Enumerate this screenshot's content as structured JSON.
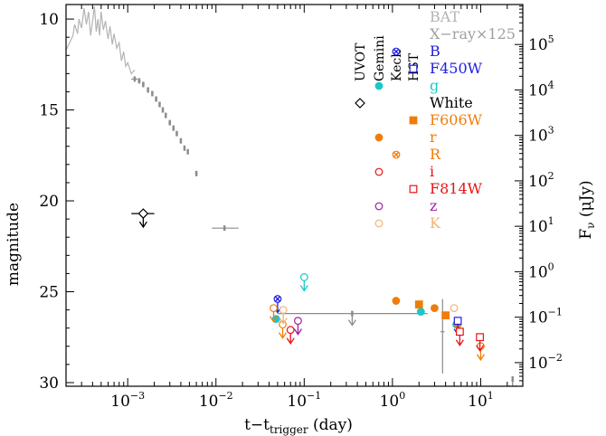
{
  "chart_data": {
    "type": "scatter",
    "title": "",
    "xlabel_main": "t−t",
    "xlabel_sub": "trigger",
    "xlabel_unit": " (day)",
    "ylabel_left": "magnitude",
    "ylabel_right_main": "F",
    "ylabel_right_sub": "ν",
    "ylabel_right_unit": " (μJy)",
    "x_scale": "log",
    "xlim": [
      0.0002,
      30
    ],
    "ylim": [
      30.2,
      9.2
    ],
    "x_ticks": [
      {
        "value": 0.001,
        "base": "10",
        "exp": "−3"
      },
      {
        "value": 0.01,
        "base": "10",
        "exp": "−2"
      },
      {
        "value": 0.1,
        "base": "10",
        "exp": "−1"
      },
      {
        "value": 1,
        "base": "10",
        "exp": "0"
      },
      {
        "value": 10,
        "base": "10",
        "exp": "1"
      }
    ],
    "y_ticks": [
      10,
      15,
      20,
      25,
      30
    ],
    "right_ticks": [
      {
        "value": 5,
        "exp": "5"
      },
      {
        "value": 4,
        "exp": "4"
      },
      {
        "value": 3,
        "exp": "3"
      },
      {
        "value": 2,
        "exp": "2"
      },
      {
        "value": 1,
        "exp": "1"
      },
      {
        "value": 0,
        "exp": "0"
      },
      {
        "value": -1,
        "exp": "−1"
      },
      {
        "value": -2,
        "exp": "−2"
      }
    ],
    "instrument_labels": [
      "UVOT",
      "Gemini",
      "Keck",
      "HST"
    ],
    "legend": [
      {
        "name": "BAT",
        "color": "#b4b4b4",
        "marker": "none"
      },
      {
        "name": "X−ray×125",
        "color": "#a0a0a0",
        "marker": "none"
      },
      {
        "name": "B",
        "color": "#2020e0",
        "marker": "xcircle",
        "col": 2
      },
      {
        "name": "F450W",
        "color": "#2020e0",
        "marker": "square-open",
        "col": 3
      },
      {
        "name": "g",
        "color": "#19c8c8",
        "marker": "circle-filled",
        "col": 1
      },
      {
        "name": "White",
        "color": "#000000",
        "marker": "diamond-open",
        "col": 0
      },
      {
        "name": "F606W",
        "color": "#f07d0a",
        "marker": "square-filled",
        "col": 3
      },
      {
        "name": "r",
        "color": "#f07d0a",
        "marker": "circle-filled",
        "col": 1
      },
      {
        "name": "R",
        "color": "#f07d0a",
        "marker": "xcircle",
        "col": 2
      },
      {
        "name": "i",
        "color": "#e61414",
        "marker": "circle-open",
        "col": 1
      },
      {
        "name": "F814W",
        "color": "#e61414",
        "marker": "square-open",
        "col": 3
      },
      {
        "name": "z",
        "color": "#a01ea0",
        "marker": "circle-open",
        "col": 1
      },
      {
        "name": "K",
        "color": "#f0b478",
        "marker": "circle-open",
        "col": 1
      }
    ],
    "bat_curve": [
      [
        0.0002,
        11.7
      ],
      [
        0.00022,
        11.3
      ],
      [
        0.00024,
        10.9
      ],
      [
        0.00025,
        10.3
      ],
      [
        0.00027,
        10.8
      ],
      [
        0.00028,
        10.0
      ],
      [
        0.0003,
        10.5
      ],
      [
        0.00032,
        9.4
      ],
      [
        0.00034,
        10.3
      ],
      [
        0.00036,
        9.6
      ],
      [
        0.00038,
        10.9
      ],
      [
        0.0004,
        10.1
      ],
      [
        0.00042,
        9.3
      ],
      [
        0.00044,
        10.7
      ],
      [
        0.00046,
        10.0
      ],
      [
        0.00048,
        10.9
      ],
      [
        0.0005,
        9.6
      ],
      [
        0.00053,
        10.6
      ],
      [
        0.00056,
        10.1
      ],
      [
        0.0006,
        11.1
      ],
      [
        0.00063,
        10.4
      ],
      [
        0.00067,
        11.4
      ],
      [
        0.0007,
        10.8
      ],
      [
        0.00075,
        11.6
      ],
      [
        0.0008,
        11.3
      ],
      [
        0.00085,
        12.3
      ],
      [
        0.0009,
        11.8
      ],
      [
        0.00095,
        12.6
      ],
      [
        0.001,
        12.4
      ],
      [
        0.0011,
        13.0
      ],
      [
        0.0012,
        12.8
      ]
    ],
    "xray": [
      {
        "x": 0.0012,
        "y": 13.3,
        "xerr": [
          0.0011,
          0.0013
        ]
      },
      {
        "x": 0.00135,
        "y": 13.4,
        "xerr": [
          0.0013,
          0.0014
        ]
      },
      {
        "x": 0.0015,
        "y": 13.6,
        "xerr": [
          0.00145,
          0.00155
        ]
      },
      {
        "x": 0.0017,
        "y": 13.9,
        "xerr": [
          0.00165,
          0.00175
        ]
      },
      {
        "x": 0.0019,
        "y": 14.1,
        "xerr": [
          0.00185,
          0.00195
        ]
      },
      {
        "x": 0.0021,
        "y": 14.4,
        "xerr": [
          0.00205,
          0.00215
        ]
      },
      {
        "x": 0.0023,
        "y": 14.7,
        "xerr": [
          0.00225,
          0.00235
        ]
      },
      {
        "x": 0.0025,
        "y": 15.0,
        "xerr": [
          0.00245,
          0.00255
        ]
      },
      {
        "x": 0.0027,
        "y": 15.3,
        "xerr": [
          0.00265,
          0.00275
        ]
      },
      {
        "x": 0.003,
        "y": 15.7,
        "xerr": [
          0.0029,
          0.0031
        ]
      },
      {
        "x": 0.0033,
        "y": 16.0,
        "xerr": [
          0.0032,
          0.0034
        ]
      },
      {
        "x": 0.0036,
        "y": 16.3,
        "xerr": [
          0.0035,
          0.0037
        ]
      },
      {
        "x": 0.004,
        "y": 16.7,
        "xerr": [
          0.0039,
          0.0041
        ]
      },
      {
        "x": 0.0044,
        "y": 17.1,
        "xerr": [
          0.0043,
          0.0045
        ]
      },
      {
        "x": 0.0048,
        "y": 17.3,
        "xerr": [
          0.0047,
          0.0049
        ]
      },
      {
        "x": 0.006,
        "y": 18.5,
        "xerr": [
          0.0058,
          0.0062
        ]
      },
      {
        "x": 0.0125,
        "y": 21.5,
        "xerr": [
          0.009,
          0.018
        ]
      },
      {
        "x": 0.35,
        "y": 26.2,
        "xerr": [
          0.05,
          2.5
        ],
        "upper": true
      },
      {
        "x": 3.7,
        "y": 27.2,
        "xerr": [
          3.5,
          3.9
        ],
        "yerr": [
          25.4,
          29.5
        ]
      },
      {
        "x": 23,
        "y": 29.8,
        "upper": true
      }
    ],
    "series": [
      {
        "name": "White",
        "color": "#000000",
        "marker": "diamond-open",
        "points": [
          {
            "x": 0.0015,
            "y": 20.7,
            "xerr": [
              0.0011,
              0.002
            ],
            "upper": true
          }
        ]
      },
      {
        "name": "B",
        "color": "#2020e0",
        "marker": "xcircle",
        "points": [
          {
            "x": 0.05,
            "y": 25.4,
            "upper": true
          }
        ]
      },
      {
        "name": "g",
        "color": "#19c8c8",
        "marker": "circle",
        "points": [
          {
            "x": 0.048,
            "y": 26.5
          },
          {
            "x": 0.1,
            "y": 24.2,
            "open": true,
            "upper": true
          },
          {
            "x": 2.1,
            "y": 26.1
          },
          {
            "x": 5.3,
            "y": 26.8
          }
        ]
      },
      {
        "name": "r",
        "color": "#f07d0a",
        "marker": "circle",
        "points": [
          {
            "x": 0.045,
            "y": 25.9,
            "open": true,
            "upper": true
          },
          {
            "x": 0.057,
            "y": 26.8,
            "open": true,
            "upper": true
          },
          {
            "x": 1.1,
            "y": 25.5
          },
          {
            "x": 3.0,
            "y": 25.9
          },
          {
            "x": 5.5,
            "y": 26.8
          },
          {
            "x": 10,
            "y": 28.0,
            "open": true,
            "upper": true
          }
        ]
      },
      {
        "name": "i",
        "color": "#e61414",
        "marker": "circle-open",
        "points": [
          {
            "x": 0.07,
            "y": 27.1,
            "upper": true
          }
        ]
      },
      {
        "name": "z",
        "color": "#a01ea0",
        "marker": "circle-open",
        "points": [
          {
            "x": 0.085,
            "y": 26.6,
            "upper": true
          }
        ]
      },
      {
        "name": "K",
        "color": "#f0b478",
        "marker": "circle-open",
        "points": [
          {
            "x": 0.058,
            "y": 26.0,
            "upper": true
          },
          {
            "x": 5.0,
            "y": 25.9
          }
        ]
      },
      {
        "name": "F450W",
        "color": "#2020e0",
        "marker": "square-open",
        "points": [
          {
            "x": 5.5,
            "y": 26.6,
            "upper": true
          }
        ]
      },
      {
        "name": "F606W",
        "color": "#f07d0a",
        "marker": "square-filled",
        "points": [
          {
            "x": 2.0,
            "y": 25.7
          },
          {
            "x": 4.0,
            "y": 26.3
          }
        ]
      },
      {
        "name": "F814W",
        "color": "#e61414",
        "marker": "square-open",
        "points": [
          {
            "x": 5.8,
            "y": 27.2,
            "upper": true
          },
          {
            "x": 9.8,
            "y": 27.5,
            "upper": true
          }
        ]
      }
    ]
  }
}
